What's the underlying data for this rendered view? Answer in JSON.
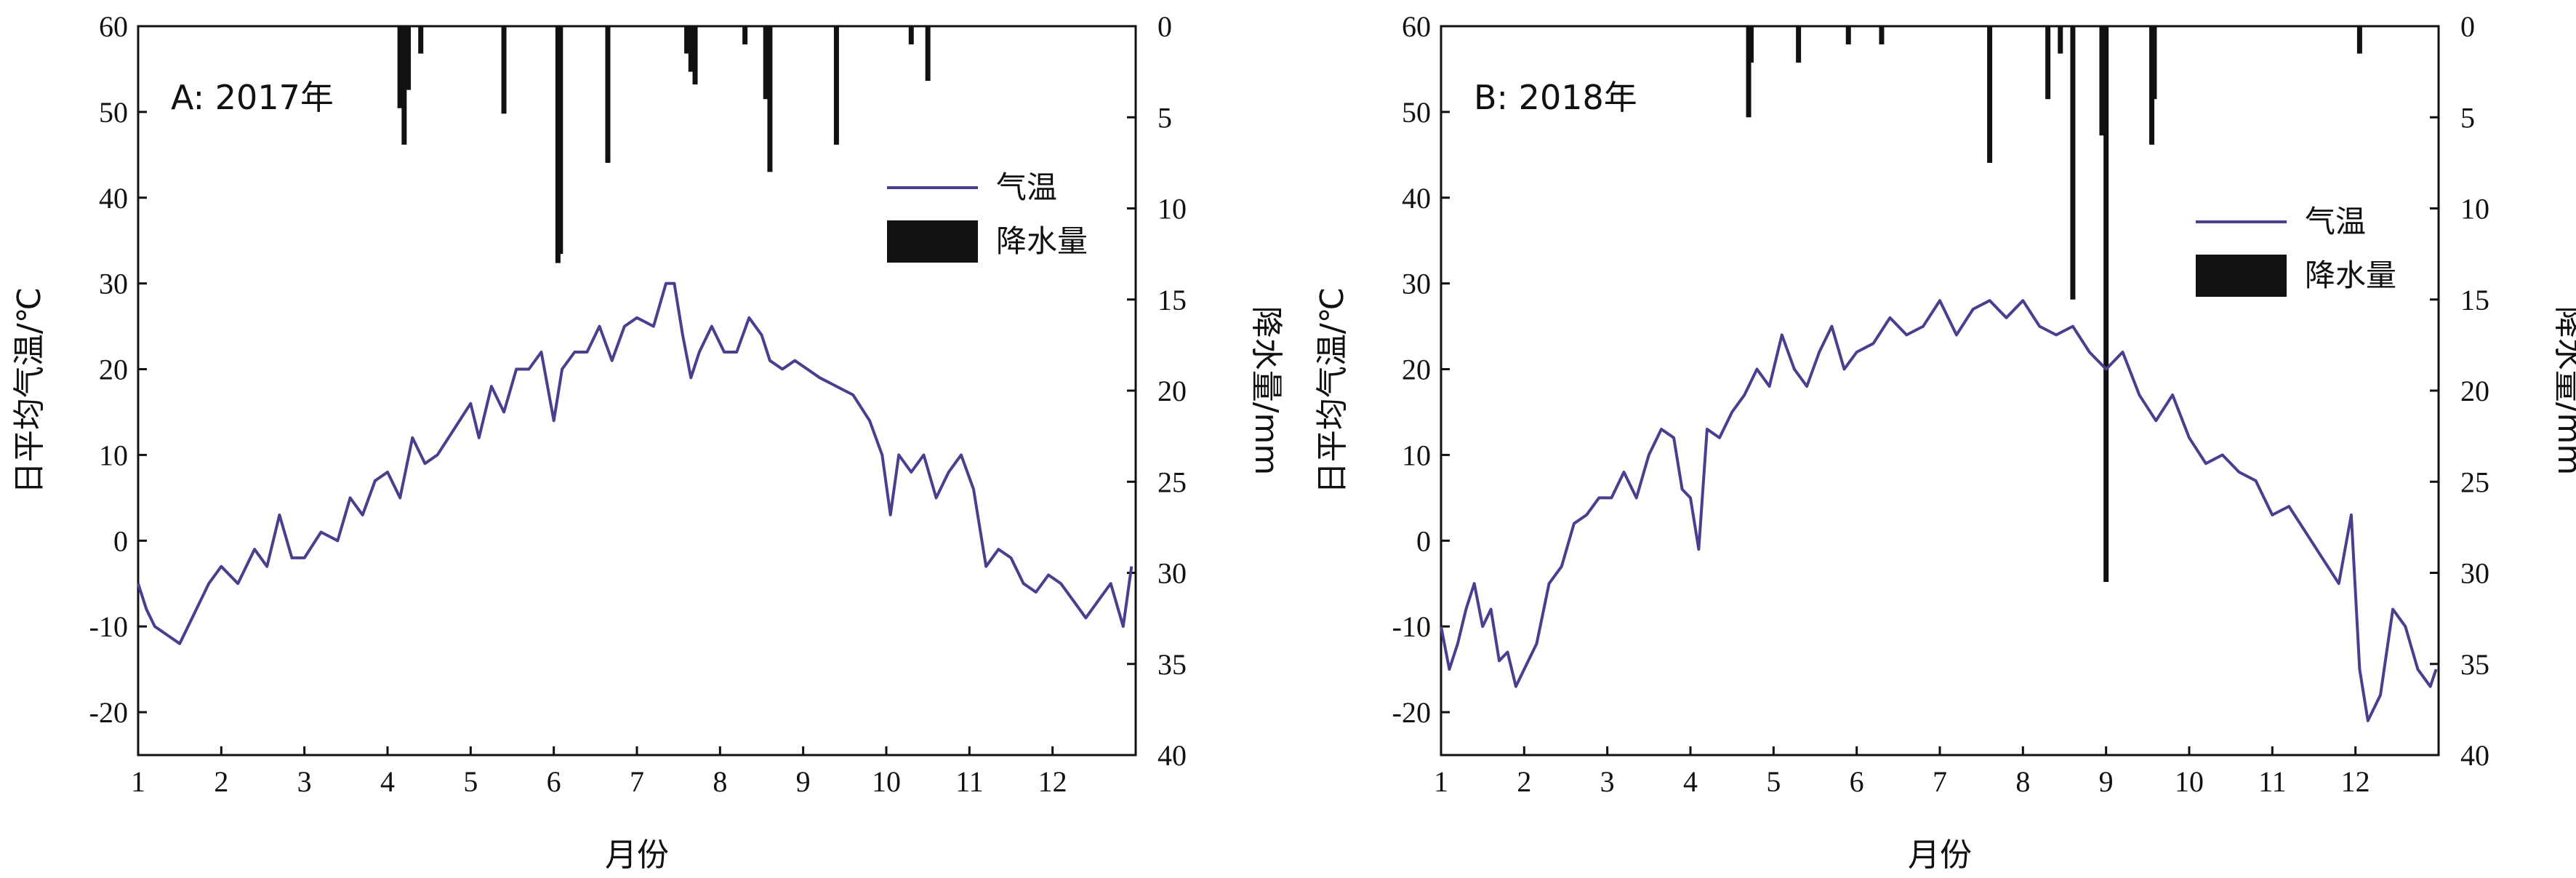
{
  "chart_data": [
    {
      "panel": "A",
      "type": "line+bar",
      "title": "A: 2017年",
      "xlabel": "月份",
      "ylabel_left": "日平均气温/℃",
      "ylabel_right": "降水量/mm",
      "xlim": [
        1,
        13
      ],
      "xticks": [
        1,
        2,
        3,
        4,
        5,
        6,
        7,
        8,
        9,
        10,
        11,
        12
      ],
      "ylim_left": [
        -25,
        60
      ],
      "yticks_left": [
        -20,
        -10,
        0,
        10,
        20,
        30,
        40,
        50,
        60
      ],
      "ylim_right_inverted": [
        0,
        40
      ],
      "yticks_right": [
        0,
        5,
        10,
        15,
        20,
        25,
        30,
        35,
        40
      ],
      "legend": [
        "气温",
        "降水量"
      ],
      "legend_position": "upper-right",
      "series": [
        {
          "name": "气温",
          "kind": "line",
          "color": "#4a3f8f",
          "x": [
            1.0,
            1.1,
            1.2,
            1.35,
            1.5,
            1.6,
            1.75,
            1.85,
            2.0,
            2.2,
            2.4,
            2.55,
            2.7,
            2.85,
            3.0,
            3.2,
            3.4,
            3.55,
            3.7,
            3.85,
            4.0,
            4.15,
            4.3,
            4.45,
            4.6,
            4.8,
            5.0,
            5.1,
            5.25,
            5.4,
            5.55,
            5.7,
            5.85,
            6.0,
            6.1,
            6.25,
            6.4,
            6.55,
            6.7,
            6.85,
            7.0,
            7.2,
            7.35,
            7.45,
            7.55,
            7.65,
            7.75,
            7.9,
            8.05,
            8.2,
            8.35,
            8.5,
            8.6,
            8.75,
            8.9,
            9.05,
            9.2,
            9.4,
            9.6,
            9.8,
            9.95,
            10.05,
            10.15,
            10.3,
            10.45,
            10.6,
            10.75,
            10.9,
            11.05,
            11.2,
            11.35,
            11.5,
            11.65,
            11.8,
            11.95,
            12.1,
            12.25,
            12.4,
            12.55,
            12.7,
            12.85,
            12.95
          ],
          "values": [
            -5,
            -8,
            -10,
            -11,
            -12,
            -10,
            -7,
            -5,
            -3,
            -5,
            -1,
            -3,
            3,
            -2,
            -2,
            1,
            0,
            5,
            3,
            7,
            8,
            5,
            12,
            9,
            10,
            13,
            16,
            12,
            18,
            15,
            20,
            20,
            22,
            14,
            20,
            22,
            22,
            25,
            21,
            25,
            26,
            25,
            30,
            30,
            24,
            19,
            22,
            25,
            22,
            22,
            26,
            24,
            21,
            20,
            21,
            20,
            19,
            18,
            17,
            14,
            10,
            3,
            10,
            8,
            10,
            5,
            8,
            10,
            6,
            -3,
            -1,
            -2,
            -5,
            -6,
            -4,
            -5,
            -7,
            -9,
            -7,
            -5,
            -10,
            -3
          ]
        },
        {
          "name": "降水量",
          "kind": "bar",
          "color": "#111111",
          "axis": "right",
          "x": [
            4.15,
            4.2,
            4.25,
            4.4,
            5.4,
            6.05,
            6.08,
            6.65,
            7.6,
            7.65,
            7.7,
            8.3,
            8.55,
            8.6,
            9.4,
            10.5,
            10.3
          ],
          "values": [
            4.5,
            6.5,
            3.5,
            1.5,
            4.8,
            13.0,
            12.5,
            7.5,
            1.5,
            2.5,
            3.2,
            1.0,
            4.0,
            8.0,
            6.5,
            3.0,
            1.0
          ]
        }
      ]
    },
    {
      "panel": "B",
      "type": "line+bar",
      "title": "B: 2018年",
      "xlabel": "月份",
      "ylabel_left": "日平均气温/℃",
      "ylabel_right": "降水量/mm",
      "xlim": [
        1,
        13
      ],
      "xticks": [
        1,
        2,
        3,
        4,
        5,
        6,
        7,
        8,
        9,
        10,
        11,
        12
      ],
      "ylim_left": [
        -25,
        60
      ],
      "yticks_left": [
        -20,
        -10,
        0,
        10,
        20,
        30,
        40,
        50,
        60
      ],
      "ylim_right_inverted": [
        0,
        40
      ],
      "yticks_right": [
        0,
        5,
        10,
        15,
        20,
        25,
        30,
        35,
        40
      ],
      "legend": [
        "气温",
        "降水量"
      ],
      "legend_position": "upper-right",
      "series": [
        {
          "name": "气温",
          "kind": "line",
          "color": "#4a3f8f",
          "x": [
            1.0,
            1.1,
            1.2,
            1.3,
            1.4,
            1.5,
            1.6,
            1.7,
            1.8,
            1.9,
            2.0,
            2.15,
            2.3,
            2.45,
            2.6,
            2.75,
            2.9,
            3.05,
            3.2,
            3.35,
            3.5,
            3.65,
            3.8,
            3.9,
            4.0,
            4.1,
            4.2,
            4.35,
            4.5,
            4.65,
            4.8,
            4.95,
            5.1,
            5.25,
            5.4,
            5.55,
            5.7,
            5.85,
            6.0,
            6.2,
            6.4,
            6.6,
            6.8,
            7.0,
            7.2,
            7.4,
            7.6,
            7.8,
            8.0,
            8.2,
            8.4,
            8.6,
            8.8,
            9.0,
            9.2,
            9.4,
            9.6,
            9.8,
            10.0,
            10.2,
            10.4,
            10.6,
            10.8,
            11.0,
            11.2,
            11.4,
            11.6,
            11.8,
            11.95,
            12.05,
            12.15,
            12.3,
            12.45,
            12.6,
            12.75,
            12.9,
            12.97
          ],
          "values": [
            -10,
            -15,
            -12,
            -8,
            -5,
            -10,
            -8,
            -14,
            -13,
            -17,
            -15,
            -12,
            -5,
            -3,
            2,
            3,
            5,
            5,
            8,
            5,
            10,
            13,
            12,
            6,
            5,
            -1,
            13,
            12,
            15,
            17,
            20,
            18,
            24,
            20,
            18,
            22,
            25,
            20,
            22,
            23,
            26,
            24,
            25,
            28,
            24,
            27,
            28,
            26,
            28,
            25,
            24,
            25,
            22,
            20,
            22,
            17,
            14,
            17,
            12,
            9,
            10,
            8,
            7,
            3,
            4,
            1,
            -2,
            -5,
            3,
            -15,
            -21,
            -18,
            -8,
            -10,
            -15,
            -17,
            -15
          ]
        },
        {
          "name": "降水量",
          "kind": "bar",
          "color": "#111111",
          "axis": "right",
          "x": [
            4.7,
            4.73,
            5.3,
            5.9,
            6.3,
            7.6,
            8.3,
            8.45,
            8.6,
            8.95,
            9.0,
            9.55,
            9.58,
            12.05
          ],
          "values": [
            5.0,
            2.0,
            2.0,
            1.0,
            1.0,
            7.5,
            4.0,
            1.5,
            15.0,
            6.0,
            30.5,
            6.5,
            4.0,
            1.5
          ]
        }
      ]
    }
  ]
}
